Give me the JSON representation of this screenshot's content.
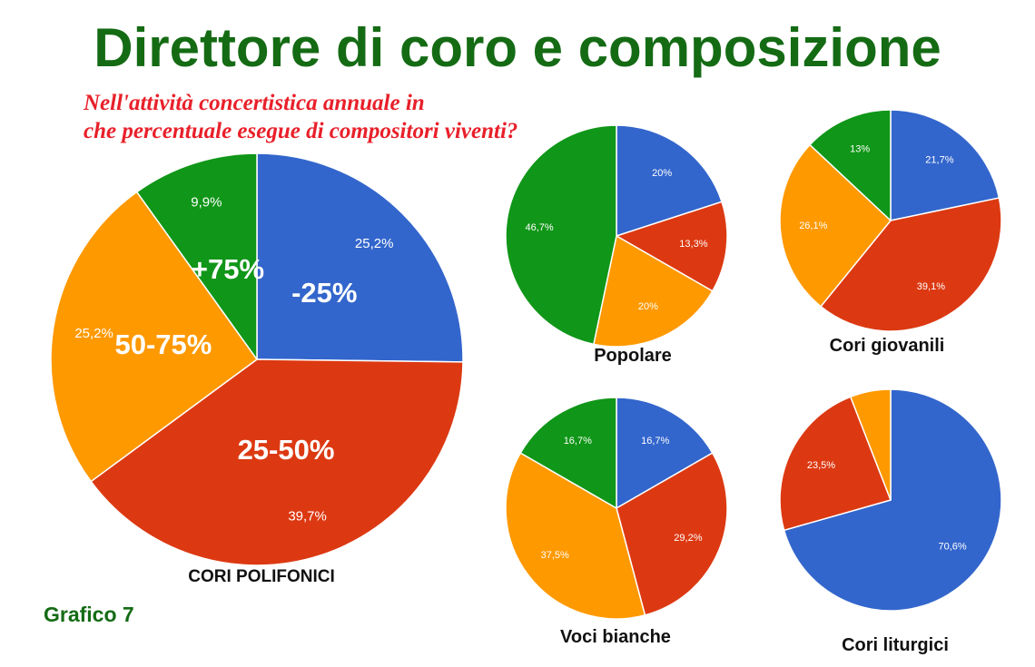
{
  "title": "Direttore di coro e composizione",
  "subtitle_lines": [
    "Nell'attività concertistica annuale in",
    "che percentuale esegue di compositori viventi?"
  ],
  "figure_label": "Grafico 7",
  "colors": {
    "blue": "#3366cc",
    "red": "#dc3912",
    "orange": "#ff9900",
    "green": "#109618",
    "title_green": "#146b14",
    "subtitle_red": "#e8202a"
  },
  "chart_data": [
    {
      "type": "pie",
      "title": "CORI POLIFONICI",
      "categories": [
        "-25%",
        "25-50%",
        "50-75%",
        "+75%"
      ],
      "values": [
        25.2,
        39.7,
        25.2,
        9.9
      ],
      "labels": [
        "25,2%",
        "39,7%",
        "25,2%",
        "9,9%"
      ],
      "legend": "category names drawn inside slices"
    },
    {
      "type": "pie",
      "title": "Popolare",
      "categories": [
        "-25%",
        "25-50%",
        "50-75%",
        "+75%"
      ],
      "values": [
        20,
        13.3,
        20,
        46.7
      ],
      "labels": [
        "20%",
        "13,3%",
        "20%",
        "46,7%"
      ]
    },
    {
      "type": "pie",
      "title": "Cori giovanili",
      "categories": [
        "-25%",
        "25-50%",
        "50-75%",
        "+75%"
      ],
      "values": [
        21.7,
        39.1,
        26.1,
        13
      ],
      "labels": [
        "21,7%",
        "39,1%",
        "26,1%",
        "13%"
      ]
    },
    {
      "type": "pie",
      "title": "Voci bianche",
      "categories": [
        "-25%",
        "25-50%",
        "50-75%",
        "+75%"
      ],
      "values": [
        16.7,
        29.2,
        37.5,
        16.7
      ],
      "labels": [
        "16,7%",
        "29,2%",
        "37,5%",
        "16,7%"
      ]
    },
    {
      "type": "pie",
      "title": "Cori liturgici",
      "categories": [
        "-25%",
        "25-50%",
        "50-75%",
        "+75%"
      ],
      "values": [
        70.6,
        23.5,
        5.9,
        0
      ],
      "labels": [
        "70,6%",
        "23,5%",
        "",
        ""
      ]
    }
  ]
}
